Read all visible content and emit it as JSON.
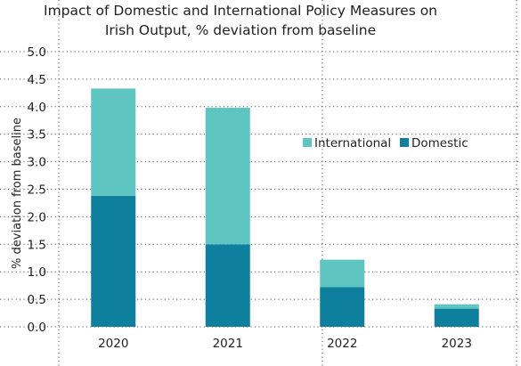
{
  "chart_data": {
    "type": "bar",
    "stacked": true,
    "title_lines": [
      "Impact of Domestic and International Policy Measures on",
      "Irish Output, % deviation from baseline"
    ],
    "xlabel": "",
    "ylabel": "% deviation from baseline",
    "categories": [
      "2020",
      "2021",
      "2022",
      "2023"
    ],
    "series": [
      {
        "name": "Domestic",
        "color": "#0e7f9d",
        "values": [
          2.38,
          1.5,
          0.72,
          0.33
        ]
      },
      {
        "name": "International",
        "color": "#5fc5c0",
        "values": [
          1.95,
          2.48,
          0.5,
          0.08
        ]
      }
    ],
    "legend_order": [
      "International",
      "Domestic"
    ],
    "legend_position": "right-center",
    "ylim": [
      0,
      5.0
    ],
    "yticks": [
      "0.0",
      "0.5",
      "1.0",
      "1.5",
      "2.0",
      "2.5",
      "3.0",
      "3.5",
      "4.0",
      "4.5",
      "5.0"
    ],
    "grid": true
  }
}
